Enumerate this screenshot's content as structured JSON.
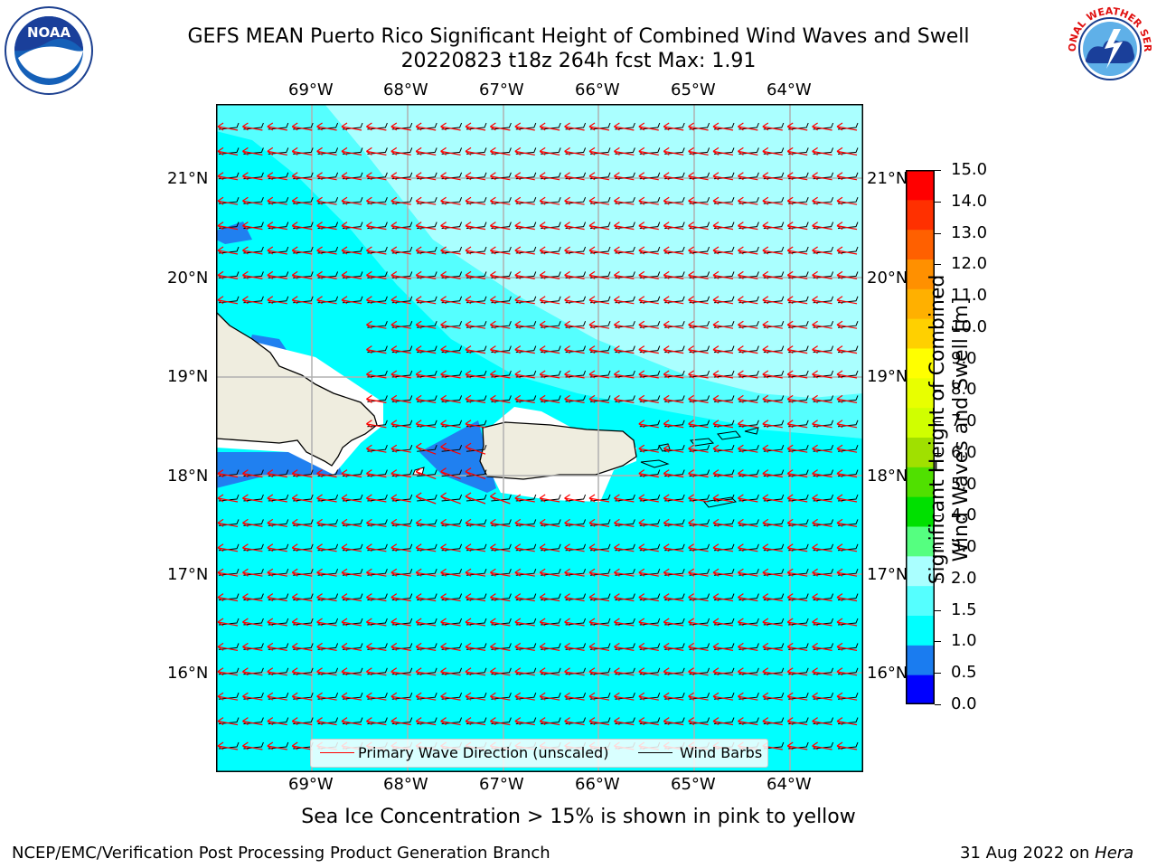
{
  "header": {
    "title_line1": "GEFS MEAN Puerto Rico Significant Height of Combined Wind Waves and Swell",
    "title_line2": "20220823 t18z 264h fcst   Max: 1.91"
  },
  "logos": {
    "noaa_text": "NOAA",
    "nws_text": "NATIONAL WEATHER SERVICE"
  },
  "map": {
    "lon_labels": [
      "69°W",
      "68°W",
      "67°W",
      "66°W",
      "65°W",
      "64°W"
    ],
    "lat_labels": [
      "21°N",
      "20°N",
      "19°N",
      "18°N",
      "17°N",
      "16°N"
    ],
    "colors": {
      "ocean_main": "#00ffff",
      "ocean_light": "#55ffff",
      "ocean_pale": "#aaffff",
      "shallow_blue": "#2080f0",
      "land": "#efeddf",
      "arrow": "#ff0000",
      "barb": "#000000",
      "grid": "#b0b0b0"
    }
  },
  "legend": {
    "wave_label": "Primary Wave Direction (unscaled)",
    "barb_label": "Wind Barbs"
  },
  "colorbar": {
    "label_line1": "Significant Height of Combined",
    "label_line2": "Wind Waves and Swell [m]",
    "ticks": [
      "15.0",
      "14.0",
      "13.0",
      "12.0",
      "11.0",
      "10.0",
      "9.0",
      "8.0",
      "7.0",
      "6.0",
      "5.0",
      "4.0",
      "3.0",
      "2.0",
      "1.5",
      "1.0",
      "0.5",
      "0.0"
    ],
    "colors_bottom_to_top": [
      "#0000ff",
      "#1a7cf0",
      "#00ffff",
      "#55ffff",
      "#aaffff",
      "#55ff80",
      "#00e000",
      "#50e000",
      "#a0e000",
      "#d0ff00",
      "#e8ff00",
      "#ffff00",
      "#ffd000",
      "#ffb000",
      "#ff9000",
      "#ff6000",
      "#ff3000",
      "#ff0000"
    ]
  },
  "notes": {
    "sea_ice": "Sea Ice Concentration > 15% is shown in pink to yellow"
  },
  "footer": {
    "left": "NCEP/EMC/Verification Post Processing Product Generation Branch",
    "date": "31 Aug 2022 on ",
    "host": "Hera"
  }
}
